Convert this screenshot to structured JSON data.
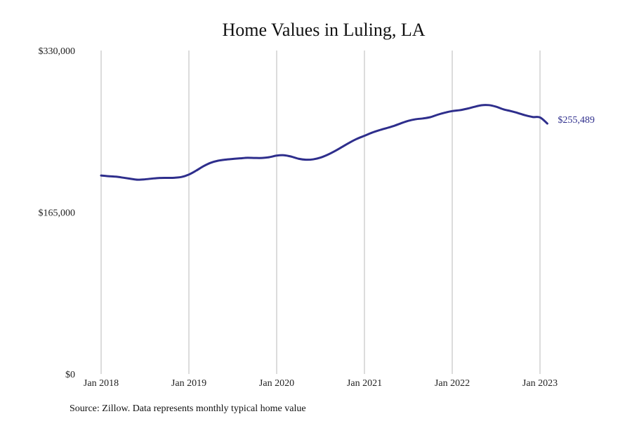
{
  "chart_data": {
    "type": "line",
    "title": "Home Values in Luling, LA",
    "xlabel": "",
    "ylabel": "",
    "x_ticks": [
      "Jan 2018",
      "Jan 2019",
      "Jan 2020",
      "Jan 2021",
      "Jan 2022",
      "Jan 2023"
    ],
    "y_ticks": [
      "$330,000",
      "$165,000",
      "$0"
    ],
    "ylim": [
      0,
      330000
    ],
    "xlim": [
      "2017-12",
      "2023-12"
    ],
    "grid": "vertical lines at January of each year",
    "legend": "none",
    "series": [
      {
        "color": "#2e2e8c",
        "end_label": "$255,489",
        "x": [
          "2018-01",
          "2018-02",
          "2018-03",
          "2018-04",
          "2018-05",
          "2018-06",
          "2018-07",
          "2018-08",
          "2018-09",
          "2018-10",
          "2018-11",
          "2018-12",
          "2019-01",
          "2019-02",
          "2019-03",
          "2019-04",
          "2019-05",
          "2019-06",
          "2019-07",
          "2019-08",
          "2019-09",
          "2019-10",
          "2019-11",
          "2019-12",
          "2020-01",
          "2020-02",
          "2020-03",
          "2020-04",
          "2020-05",
          "2020-06",
          "2020-07",
          "2020-08",
          "2020-09",
          "2020-10",
          "2020-11",
          "2020-12",
          "2021-01",
          "2021-02",
          "2021-03",
          "2021-04",
          "2021-05",
          "2021-06",
          "2021-07",
          "2021-08",
          "2021-09",
          "2021-10",
          "2021-11",
          "2021-12",
          "2022-01",
          "2022-02",
          "2022-03",
          "2022-04",
          "2022-05",
          "2022-06",
          "2022-07",
          "2022-08",
          "2022-09",
          "2022-10",
          "2022-11",
          "2022-12",
          "2023-01",
          "2023-02"
        ],
        "values": [
          202500,
          201800,
          201300,
          200300,
          199200,
          198200,
          198600,
          199400,
          200000,
          200100,
          200200,
          201000,
          203500,
          207500,
          212000,
          215500,
          217600,
          218700,
          219400,
          220000,
          220600,
          220400,
          220400,
          221200,
          222800,
          223200,
          221800,
          219600,
          218600,
          219000,
          220800,
          223800,
          227600,
          231900,
          236200,
          240000,
          243000,
          246100,
          248600,
          250800,
          253000,
          255800,
          258300,
          259900,
          260700,
          262000,
          264500,
          266600,
          268200,
          269100,
          270600,
          272500,
          274200,
          274300,
          272700,
          270000,
          268200,
          266200,
          263900,
          262200,
          261700,
          255489
        ]
      }
    ],
    "source_note": "Source: Zillow. Data represents monthly typical home value"
  }
}
